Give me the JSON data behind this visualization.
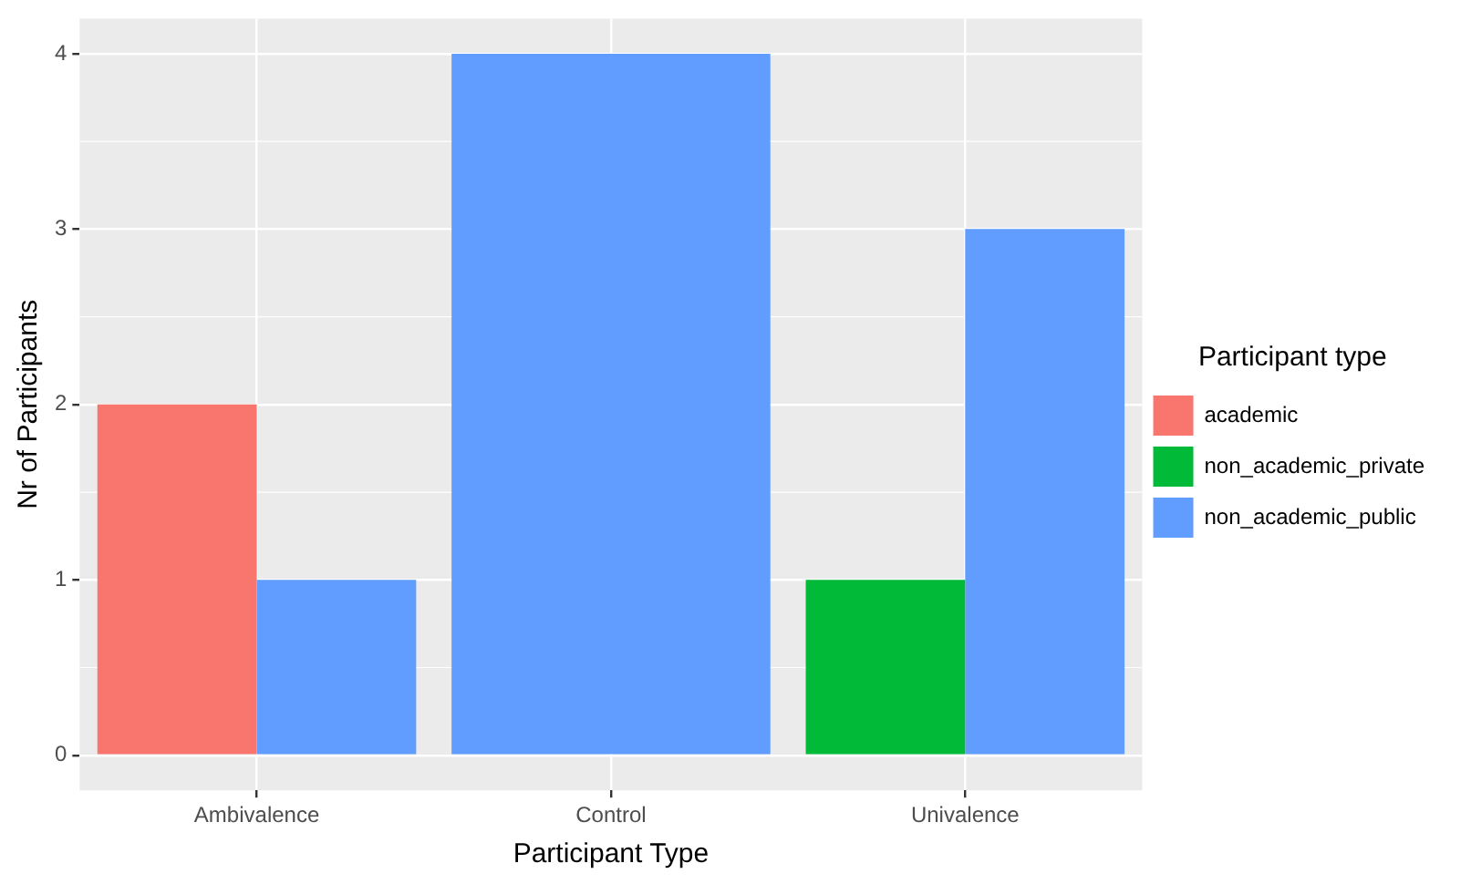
{
  "chart_data": {
    "type": "bar",
    "xlabel": "Participant Type",
    "ylabel": "Nr of Participants",
    "legend_title": "Participant type",
    "categories": [
      "Ambivalence",
      "Control",
      "Univalence"
    ],
    "series": [
      {
        "name": "academic",
        "color": "#f8766d",
        "values": [
          2,
          null,
          null
        ]
      },
      {
        "name": "non_academic_private",
        "color": "#00ba38",
        "values": [
          null,
          null,
          1
        ]
      },
      {
        "name": "non_academic_public",
        "color": "#619cff",
        "values": [
          1,
          4,
          3
        ]
      }
    ],
    "ylim": [
      -0.2,
      4.2
    ],
    "yticks": [
      0,
      1,
      2,
      3,
      4
    ],
    "grid": true,
    "legend": "right"
  }
}
